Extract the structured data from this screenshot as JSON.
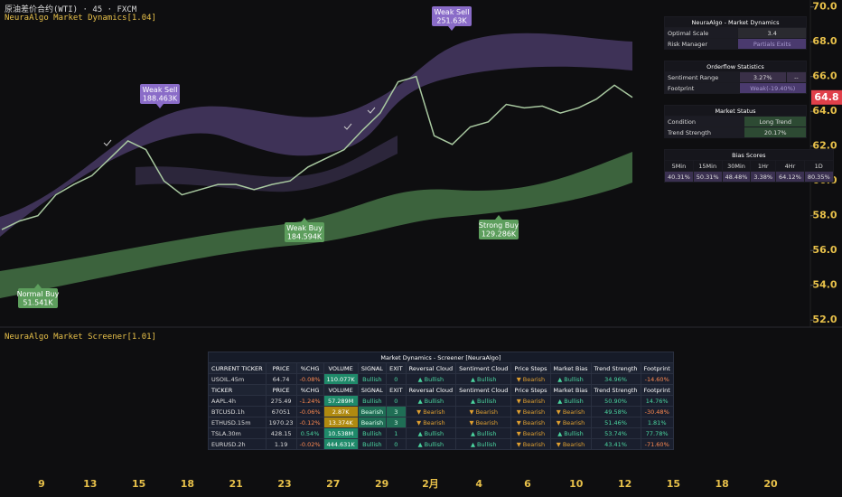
{
  "header": {
    "symbol": "原油差价合约(WTI) · 45 · FXCM",
    "indicator": "NeuraAlgo Market Dynamics[1.04]"
  },
  "chart_data": {
    "type": "line",
    "values": [
      57.2,
      57.7,
      58.0,
      59.2,
      59.8,
      60.3,
      61.3,
      62.3,
      61.8,
      60.0,
      59.2,
      59.5,
      59.8,
      59.8,
      59.5,
      59.8,
      60.0,
      60.8,
      61.3,
      61.8,
      62.9,
      63.9,
      65.7,
      66.0,
      62.6,
      62.1,
      63.1,
      63.4,
      64.4,
      64.2,
      64.3,
      63.9,
      64.2,
      64.7,
      65.5,
      64.8
    ],
    "color": "#a8c8a0",
    "ylim": [
      51.7,
      70.4
    ],
    "yticks": [
      {
        "value": 52,
        "label": "52.0"
      },
      {
        "value": 54,
        "label": "54.0"
      },
      {
        "value": 56,
        "label": "56.0"
      },
      {
        "value": 58,
        "label": "58.0"
      },
      {
        "value": 60,
        "label": "60.0"
      },
      {
        "value": 62,
        "label": "62.0"
      },
      {
        "value": 64,
        "label": "64.0"
      },
      {
        "value": 66,
        "label": "66.0"
      },
      {
        "value": 68,
        "label": "68.0"
      },
      {
        "value": 70,
        "label": "70.0"
      }
    ],
    "last_price": 64.8,
    "x_labels": [
      "9",
      "13",
      "15",
      "18",
      "21",
      "23",
      "27",
      "29",
      "2月",
      "4",
      "6",
      "10",
      "12",
      "15",
      "18",
      "20"
    ],
    "signals": [
      {
        "label": "Weak Sell",
        "volume": "188.463K"
      },
      {
        "label": "Weak Sell",
        "volume": "251.63K"
      },
      {
        "label": "Weak Buy",
        "volume": "184.594K"
      },
      {
        "label": "Strong Buy",
        "volume": "129.286K"
      },
      {
        "label": "Normal Buy",
        "volume": "51.541K"
      }
    ]
  },
  "panels": [
    {
      "title": "NeuraAlgo - Market Dynamics",
      "rows": [
        [
          "Optimal Scale",
          "3.4"
        ],
        [
          "Risk Manager",
          "Partials Exits"
        ]
      ]
    },
    {
      "title": "Orderflow Statistics",
      "rows": [
        [
          "Sentiment Range",
          "3.27%",
          "--"
        ],
        [
          "Footprint",
          "Weak(-19.40%)"
        ]
      ]
    },
    {
      "title": "Market Status",
      "rows": [
        [
          "Condition",
          "Long Trend"
        ],
        [
          "Trend Strength",
          "20.17%"
        ]
      ]
    },
    {
      "title": "Bias Scores",
      "rows": [
        [
          "5Min",
          "15Min",
          "30Min",
          "1Hr",
          "4Hr",
          "1D"
        ],
        [
          "40.31%",
          "50.31%",
          "48.48%",
          "3.38%",
          "64.12%",
          "80.35%"
        ]
      ]
    }
  ],
  "screener": {
    "indicator": "NeuraAlgo Market Screener[1.01]",
    "title": "Market Dynamics - Screener [NeuraAlgo]",
    "rows": [
      [
        "CURRENT TICKER",
        "PRICE",
        "%CHG",
        "VOLUME",
        "SIGNAL",
        "EXIT",
        "Reversal Cloud",
        "Sentiment Cloud",
        "Price Steps",
        "Market Bias",
        "Trend Strength",
        "Footprint"
      ],
      [
        "USOIL.45m",
        "64.74",
        "-0.08%",
        "110.077K",
        "Bullish",
        "0",
        "▲ Bullish",
        "▲ Bullish",
        "▼ Bearish",
        "▲ Bullish",
        "34.96%",
        "-14.60%"
      ],
      [
        "TICKER",
        "PRICE",
        "%CHG",
        "VOLUME",
        "SIGNAL",
        "EXIT",
        "Reversal Cloud",
        "Sentiment Cloud",
        "Price Steps",
        "Market Bias",
        "Trend Strength",
        "Footprint"
      ],
      [
        "AAPL.4h",
        "275.49",
        "-1.24%",
        "57.289M",
        "Bullish",
        "0",
        "▲ Bullish",
        "▲ Bullish",
        "▼ Bearish",
        "▲ Bullish",
        "50.90%",
        "14.76%"
      ],
      [
        "BTCUSD.1h",
        "67051",
        "-0.06%",
        "2.87K",
        "Bearish",
        "3",
        "▼ Bearish",
        "▼ Bearish",
        "▼ Bearish",
        "▼ Bearish",
        "49.58%",
        "-30.48%"
      ],
      [
        "ETHUSD.15m",
        "1970.23",
        "-0.12%",
        "13.374K",
        "Bearish",
        "3",
        "▼ Bearish",
        "▼ Bearish",
        "▼ Bearish",
        "▼ Bearish",
        "51.46%",
        "1.81%"
      ],
      [
        "TSLA.30m",
        "428.15",
        "0.54%",
        "10.538M",
        "Bullish",
        "1",
        "▲ Bullish",
        "▲ Bullish",
        "▼ Bearish",
        "▲ Bullish",
        "53.74%",
        "77.78%"
      ],
      [
        "EURUSD.2h",
        "1.19",
        "-0.02%",
        "444.631K",
        "Bullish",
        "0",
        "▲ Bullish",
        "▲ Bullish",
        "▼ Bearish",
        "▼ Bearish",
        "43.41%",
        "-71.60%"
      ]
    ]
  }
}
